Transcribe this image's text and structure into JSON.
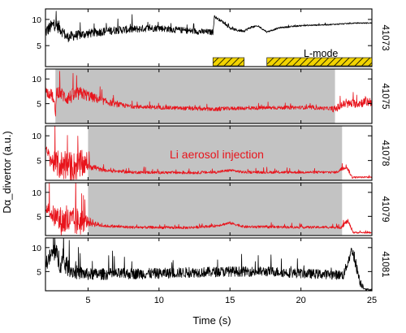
{
  "chart_data": {
    "type": "line",
    "xlabel": "Time (s)",
    "ylabel": "Dα_divertor (a.u.)",
    "xlim": [
      2,
      25
    ],
    "x_ticks": [
      5,
      10,
      15,
      20,
      25
    ],
    "y_ticks": [
      5,
      10
    ],
    "ylim": [
      1,
      12
    ],
    "annotations": {
      "lmode_label": "L-mode",
      "li_label": "Li aerosol injection"
    },
    "lmode_intervals": [
      [
        13.8,
        16.0
      ],
      [
        17.6,
        25.0
      ]
    ],
    "colors": {
      "black_trace": "#000000",
      "red_trace": "#e8141c",
      "shade": "#c3c3c3",
      "lmode_fill": "#f2d400",
      "annotation_red": "#e8141c"
    },
    "panels": [
      {
        "shot": "41073",
        "color": "black",
        "shaded": null,
        "base": [
          [
            2.0,
            7.5
          ],
          [
            2.6,
            9.0
          ],
          [
            3.0,
            8.3
          ],
          [
            3.5,
            6.5
          ],
          [
            4.0,
            6.8
          ],
          [
            5.0,
            7.2
          ],
          [
            6.0,
            7.6
          ],
          [
            7.0,
            7.9
          ],
          [
            8.0,
            8.0
          ],
          [
            9.0,
            8.2
          ],
          [
            10.0,
            8.3
          ],
          [
            11.0,
            8.0
          ],
          [
            12.0,
            7.8
          ],
          [
            13.0,
            7.6
          ],
          [
            13.8,
            7.5
          ],
          [
            13.9,
            10.5
          ],
          [
            14.5,
            9.5
          ],
          [
            15.0,
            8.3
          ],
          [
            15.5,
            7.9
          ],
          [
            16.0,
            7.8
          ],
          [
            16.5,
            8.5
          ],
          [
            17.0,
            8.7
          ],
          [
            17.6,
            7.6
          ],
          [
            18.5,
            8.4
          ],
          [
            20.0,
            8.8
          ],
          [
            22.0,
            9.0
          ],
          [
            24.0,
            9.3
          ],
          [
            25.0,
            9.3
          ]
        ],
        "noise": [
          [
            2.0,
            2.5
          ],
          [
            3.0,
            2.5
          ],
          [
            3.4,
            2.0
          ],
          [
            5.0,
            1.7
          ],
          [
            10.0,
            1.3
          ],
          [
            13.8,
            1.1
          ],
          [
            13.9,
            0.5
          ],
          [
            16.0,
            0.5
          ],
          [
            17.6,
            0.3
          ],
          [
            25.0,
            0.2
          ]
        ]
      },
      {
        "shot": "41075",
        "color": "red",
        "shaded": [
          2.7,
          22.4
        ],
        "base": [
          [
            2.0,
            7.5
          ],
          [
            2.5,
            6.5
          ],
          [
            2.7,
            3.0
          ],
          [
            2.8,
            7.5
          ],
          [
            3.5,
            6.0
          ],
          [
            4.5,
            7.0
          ],
          [
            5.0,
            6.5
          ],
          [
            6.0,
            5.5
          ],
          [
            7.0,
            4.8
          ],
          [
            8.0,
            4.4
          ],
          [
            10.0,
            4.2
          ],
          [
            12.0,
            4.0
          ],
          [
            14.0,
            3.8
          ],
          [
            15.0,
            4.0
          ],
          [
            17.0,
            4.1
          ],
          [
            20.0,
            4.2
          ],
          [
            22.0,
            4.0
          ],
          [
            22.4,
            3.8
          ],
          [
            23.0,
            4.8
          ],
          [
            24.0,
            5.0
          ],
          [
            25.0,
            5.4
          ]
        ],
        "noise": [
          [
            2.0,
            2.0
          ],
          [
            2.7,
            2.5
          ],
          [
            4.0,
            3.0
          ],
          [
            6.0,
            1.5
          ],
          [
            8.0,
            0.8
          ],
          [
            22.0,
            0.7
          ],
          [
            22.4,
            1.5
          ],
          [
            25.0,
            2.0
          ]
        ]
      },
      {
        "shot": "41078",
        "color": "red",
        "shaded": [
          5.0,
          22.9
        ],
        "base": [
          [
            2.0,
            7.0
          ],
          [
            2.5,
            4.5
          ],
          [
            3.0,
            3.8
          ],
          [
            4.0,
            3.5
          ],
          [
            5.0,
            4.0
          ],
          [
            6.0,
            3.0
          ],
          [
            8.0,
            2.6
          ],
          [
            12.0,
            2.5
          ],
          [
            14.0,
            2.6
          ],
          [
            15.0,
            3.0
          ],
          [
            16.0,
            2.6
          ],
          [
            19.0,
            2.6
          ],
          [
            22.5,
            2.6
          ],
          [
            23.2,
            3.8
          ],
          [
            23.6,
            1.6
          ],
          [
            24.0,
            1.6
          ]
        ],
        "noise": [
          [
            2.0,
            2.0
          ],
          [
            3.0,
            6.0
          ],
          [
            4.5,
            6.0
          ],
          [
            5.0,
            2.0
          ],
          [
            6.0,
            0.6
          ],
          [
            22.5,
            0.5
          ],
          [
            23.0,
            1.0
          ],
          [
            24.0,
            0.3
          ]
        ]
      },
      {
        "shot": "41079",
        "color": "red",
        "shaded": [
          5.0,
          22.9
        ],
        "base": [
          [
            2.0,
            7.0
          ],
          [
            2.6,
            4.8
          ],
          [
            3.0,
            3.8
          ],
          [
            4.0,
            3.5
          ],
          [
            5.0,
            3.8
          ],
          [
            6.0,
            3.0
          ],
          [
            8.0,
            2.7
          ],
          [
            12.0,
            2.6
          ],
          [
            14.0,
            3.0
          ],
          [
            15.0,
            3.6
          ],
          [
            16.0,
            2.8
          ],
          [
            20.0,
            2.7
          ],
          [
            22.8,
            2.7
          ],
          [
            23.3,
            4.0
          ],
          [
            23.7,
            1.6
          ],
          [
            24.0,
            1.6
          ]
        ],
        "noise": [
          [
            2.0,
            2.0
          ],
          [
            3.0,
            6.0
          ],
          [
            4.5,
            6.0
          ],
          [
            5.0,
            2.0
          ],
          [
            6.0,
            0.6
          ],
          [
            22.5,
            0.5
          ],
          [
            23.0,
            1.0
          ],
          [
            24.0,
            0.3
          ]
        ]
      },
      {
        "shot": "41081",
        "color": "black",
        "shaded": null,
        "base": [
          [
            2.0,
            6.5
          ],
          [
            2.6,
            9.0
          ],
          [
            3.0,
            7.0
          ],
          [
            4.0,
            4.8
          ],
          [
            5.0,
            4.3
          ],
          [
            7.0,
            4.4
          ],
          [
            10.0,
            4.5
          ],
          [
            12.0,
            4.7
          ],
          [
            15.0,
            4.9
          ],
          [
            18.0,
            4.9
          ],
          [
            20.0,
            4.5
          ],
          [
            23.0,
            4.2
          ],
          [
            23.6,
            9.5
          ],
          [
            23.9,
            6.0
          ],
          [
            24.2,
            2.5
          ],
          [
            24.6,
            1.2
          ]
        ],
        "noise": [
          [
            2.0,
            3.0
          ],
          [
            3.0,
            5.0
          ],
          [
            4.0,
            3.0
          ],
          [
            5.0,
            2.5
          ],
          [
            10.0,
            2.2
          ],
          [
            20.0,
            2.0
          ],
          [
            23.0,
            2.0
          ],
          [
            24.0,
            2.5
          ],
          [
            24.6,
            0.5
          ]
        ]
      }
    ]
  }
}
